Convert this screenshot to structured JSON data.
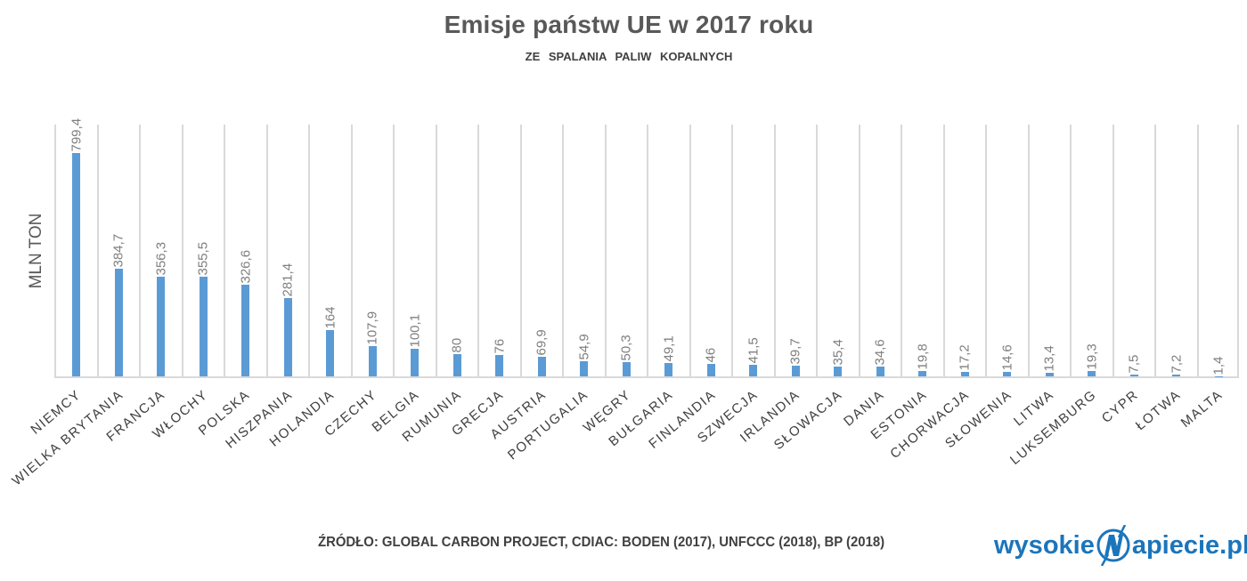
{
  "header": {
    "title": "Emisje państw UE w 2017 roku",
    "subtitle": "ZE  SPALANIA  PALIW  KOPALNYCH"
  },
  "footer": {
    "source": "ŹRÓDŁO: GLOBAL CARBON PROJECT, CDIAC: BODEN (2017), UNFCCC (2018), BP (2018)",
    "logo_left": "wysokie",
    "logo_right": "apiecie.pl",
    "logo_icon": "lightning-n-circle-icon"
  },
  "colors": {
    "bar": "#5b9bd5",
    "grid": "#d9d9d9",
    "text": "#595959",
    "logo": "#1b75bb"
  },
  "chart_data": {
    "type": "bar",
    "title": "Emisje państw UE w 2017 roku",
    "subtitle": "ZE SPALANIA PALIW KOPALNYCH",
    "xlabel": "",
    "ylabel": "MLN TON",
    "ylim": [
      0,
      900
    ],
    "grid": "vertical category separators",
    "legend": "none",
    "categories": [
      "NIEMCY",
      "WIELKA BRYTANIA",
      "FRANCJA",
      "WŁOCHY",
      "POLSKA",
      "HISZPANIA",
      "HOLANDIA",
      "CZECHY",
      "BELGIA",
      "RUMUNIA",
      "GRECJA",
      "AUSTRIA",
      "PORTUGALIA",
      "WĘGRY",
      "BUŁGARIA",
      "FINLANDIA",
      "SZWECJA",
      "IRLANDIA",
      "SŁOWACJA",
      "DANIA",
      "ESTONIA",
      "CHORWACJA",
      "SŁOWENIA",
      "LITWA",
      "LUKSEMBURG",
      "CYPR",
      "ŁOTWA",
      "MALTA"
    ],
    "values": [
      799.4,
      384.7,
      356.3,
      355.5,
      326.6,
      281.4,
      164,
      107.9,
      100.1,
      80,
      76,
      69.9,
      54.9,
      50.3,
      49.1,
      46,
      41.5,
      39.7,
      35.4,
      34.6,
      19.8,
      17.2,
      14.6,
      13.4,
      19.3,
      7.5,
      7.2,
      1.4
    ],
    "labels": [
      "799,4",
      "384,7",
      "356,3",
      "355,5",
      "326,6",
      "281,4",
      "164",
      "107,9",
      "100,1",
      "80",
      "76",
      "69,9",
      "54,9",
      "50,3",
      "49,1",
      "46",
      "41,5",
      "39,7",
      "35,4",
      "34,6",
      "19,8",
      "17,2",
      "14,6",
      "13,4",
      "19,3",
      "7,5",
      "7,2",
      "1,4"
    ],
    "source": "ŹRÓDŁO: GLOBAL CARBON PROJECT, CDIAC: BODEN (2017), UNFCCC (2018), BP (2018)"
  }
}
